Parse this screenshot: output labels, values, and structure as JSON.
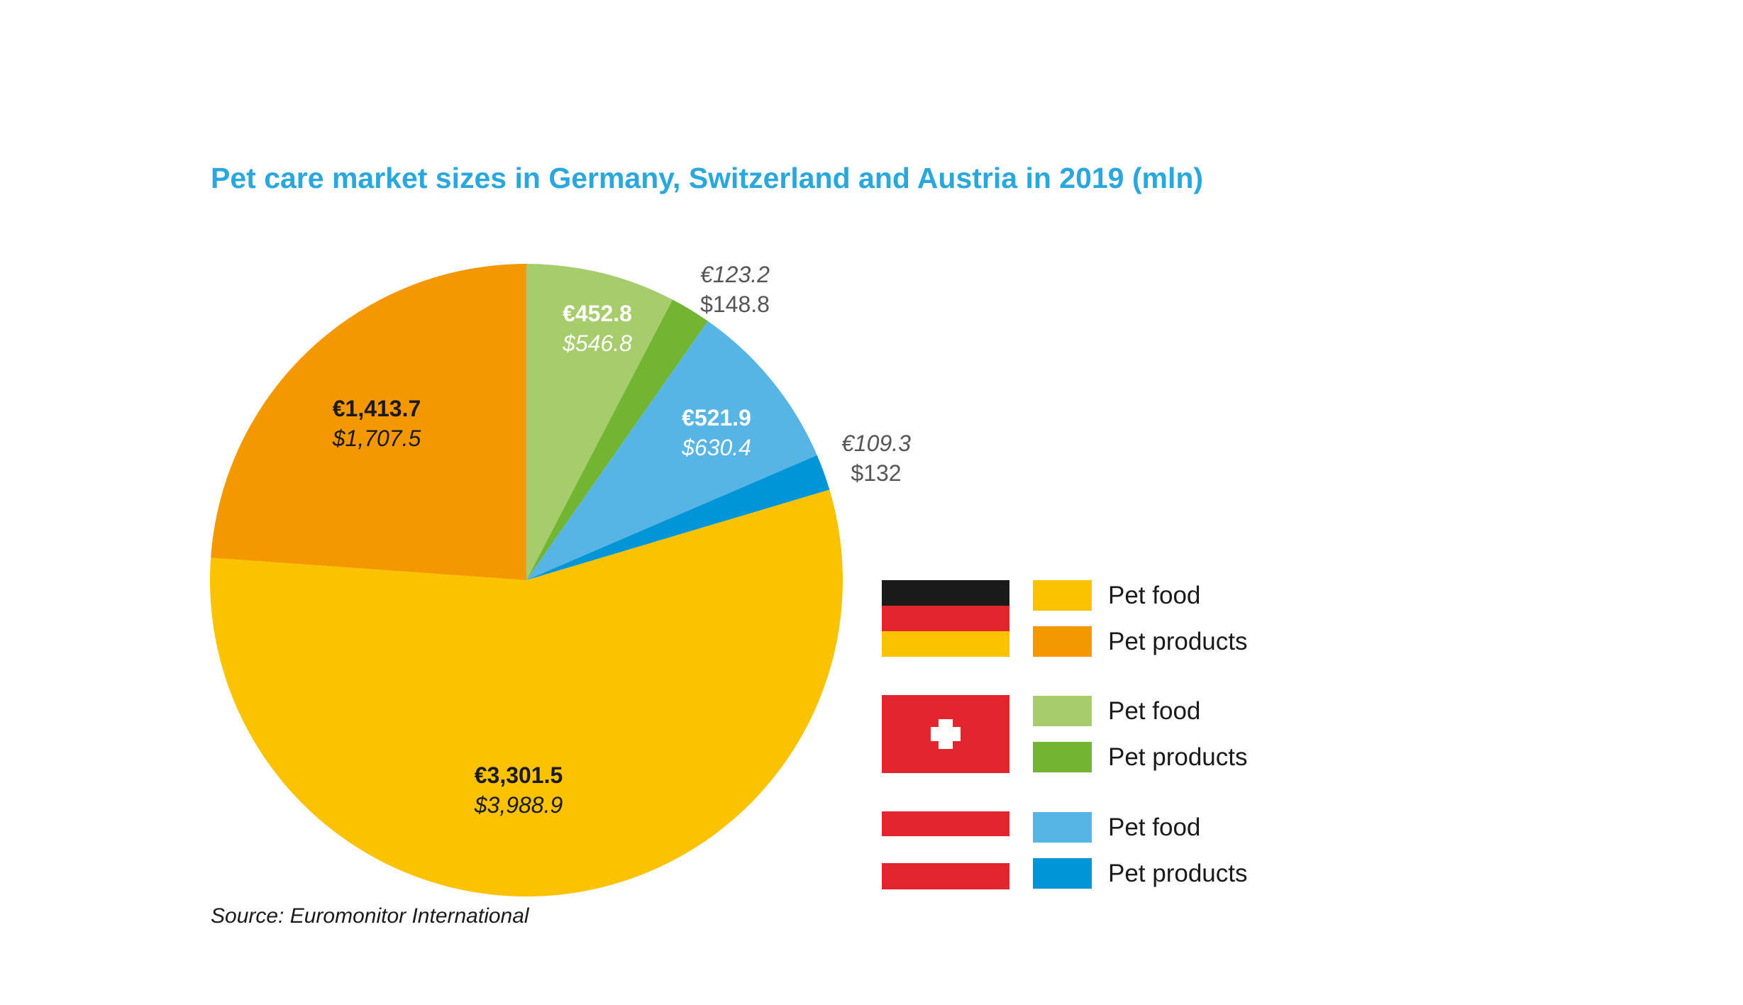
{
  "chart_data": {
    "type": "pie",
    "title": "Pet care market sizes in Germany, Switzerland and Austria in 2019 (mln)",
    "unit": "mln",
    "slices": [
      {
        "country": "Switzerland",
        "category": "Pet food",
        "eur_value": 452.8,
        "eur_label": "€452.8",
        "usd_label": "$546.8",
        "color": "#a6cc6b",
        "label_style": "inside-light"
      },
      {
        "country": "Switzerland",
        "category": "Pet products",
        "eur_value": 123.2,
        "eur_label": "€123.2",
        "usd_label": "$148.8",
        "color": "#72b533",
        "label_style": "outside"
      },
      {
        "country": "Austria",
        "category": "Pet food",
        "eur_value": 521.9,
        "eur_label": "€521.9",
        "usd_label": "$630.4",
        "color": "#57b5e5",
        "label_style": "inside-light"
      },
      {
        "country": "Austria",
        "category": "Pet products",
        "eur_value": 109.3,
        "eur_label": "€109.3",
        "usd_label": "$132",
        "color": "#0095d6",
        "label_style": "outside"
      },
      {
        "country": "Germany",
        "category": "Pet food",
        "eur_value": 3301.5,
        "eur_label": "€3,301.5",
        "usd_label": "$3,988.9",
        "color": "#fbc200",
        "label_style": "inside-dark"
      },
      {
        "country": "Germany",
        "category": "Pet products",
        "eur_value": 1413.7,
        "eur_label": "€1,413.7",
        "usd_label": "$1,707.5",
        "color": "#f39800",
        "label_style": "inside-dark"
      }
    ],
    "legend": {
      "placement": "right",
      "groups": [
        {
          "country": "Germany",
          "flag": "germany-flag",
          "items": [
            {
              "label": "Pet food",
              "color": "#fbc200"
            },
            {
              "label": "Pet products",
              "color": "#f39800"
            }
          ]
        },
        {
          "country": "Switzerland",
          "flag": "switzerland-flag",
          "items": [
            {
              "label": "Pet food",
              "color": "#a6cc6b"
            },
            {
              "label": "Pet products",
              "color": "#72b533"
            }
          ]
        },
        {
          "country": "Austria",
          "flag": "austria-flag",
          "items": [
            {
              "label": "Pet food",
              "color": "#57b5e5"
            },
            {
              "label": "Pet products",
              "color": "#0095d6"
            }
          ]
        }
      ]
    }
  },
  "source": "Source: Euromonitor International",
  "colors": {
    "title": "#2aa7dd",
    "flag_black": "#1a1a1a",
    "flag_red": "#e3262e",
    "flag_yellow": "#fbc200",
    "flag_white": "#ffffff"
  }
}
